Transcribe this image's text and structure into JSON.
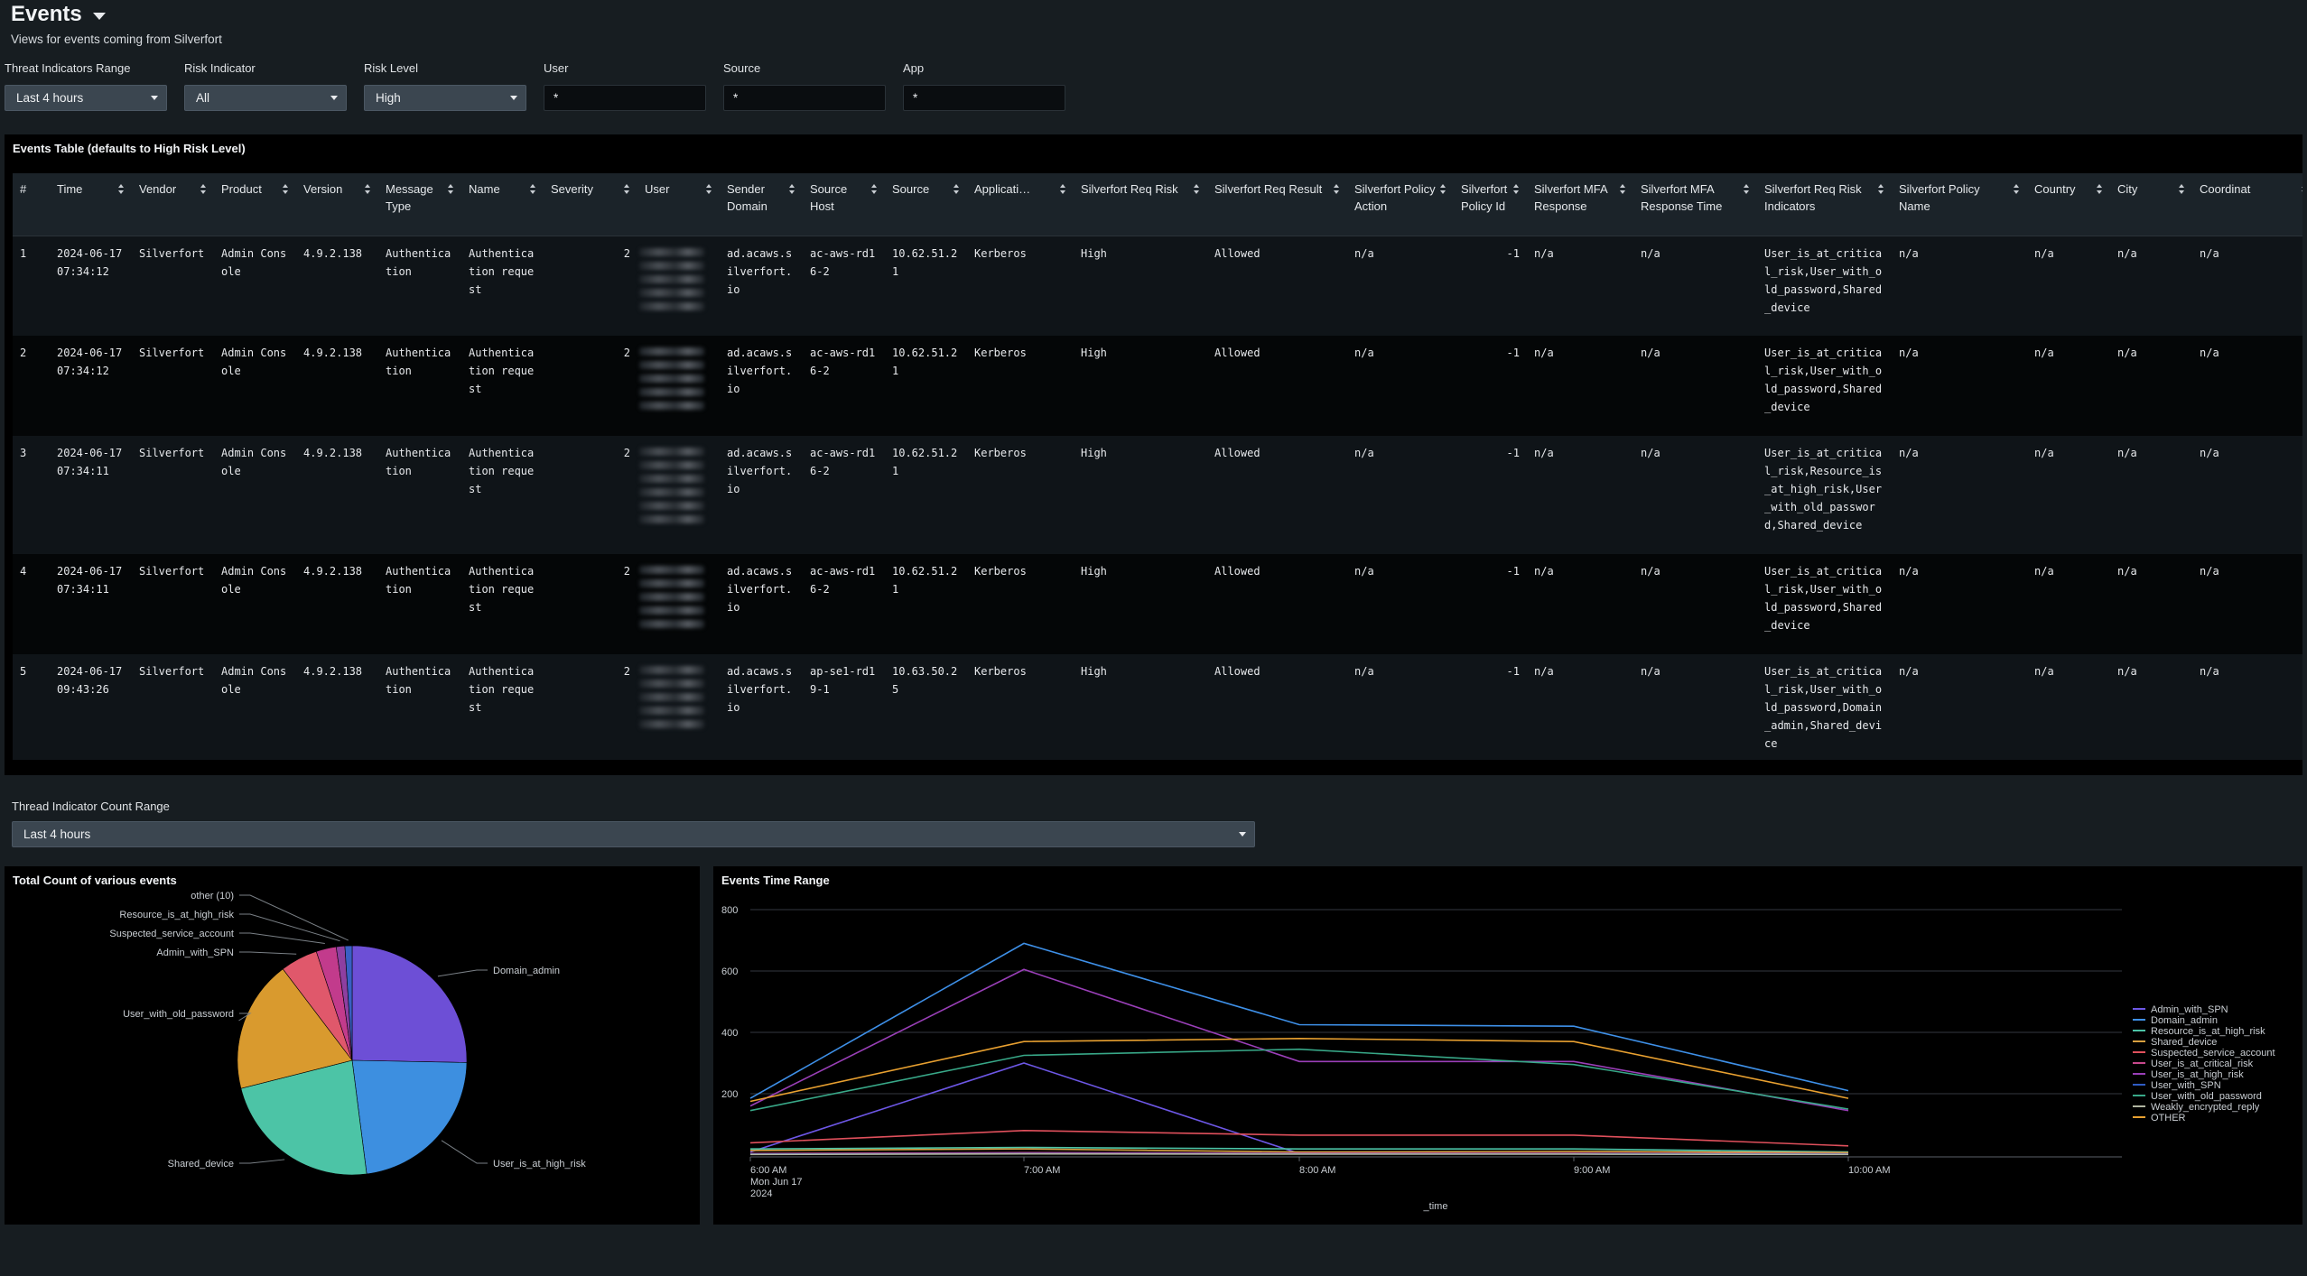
{
  "header": {
    "title": "Events",
    "subtitle": "Views for events coming from Silverfort"
  },
  "filters": [
    {
      "label": "Threat Indicators Range",
      "type": "dropdown",
      "value": "Last 4 hours"
    },
    {
      "label": "Risk Indicator",
      "type": "dropdown",
      "value": "All"
    },
    {
      "label": "Risk Level",
      "type": "dropdown",
      "value": "High"
    },
    {
      "label": "User",
      "type": "text",
      "value": "*"
    },
    {
      "label": "Source",
      "type": "text",
      "value": "*"
    },
    {
      "label": "App",
      "type": "text",
      "value": "*"
    }
  ],
  "events_table": {
    "title": "Events Table (defaults to High Risk Level)",
    "columns": [
      "#",
      "Time",
      "Vendor",
      "Product",
      "Version",
      "Message Type",
      "Name",
      "Severity",
      "User",
      "Sender Domain",
      "Source Host",
      "Source",
      "Applicati…",
      "Silverfort Req Risk",
      "Silverfort Req Result",
      "Silverfort Policy Action",
      "Silverfort Policy Id",
      "Silverfort MFA Response",
      "Silverfort MFA Response Time",
      "Silverfort Req Risk Indicators",
      "Silverfort Policy Name",
      "Country",
      "City",
      "Coordinat"
    ],
    "rows": [
      {
        "n": "1",
        "time": "2024-06-17 07:34:12",
        "vendor": "Silverfort",
        "product": "Admin Console",
        "version": "4.9.2.138",
        "msg_type": "Authentication",
        "name": "Authentication request",
        "severity": "2",
        "domain": "ad.acaws.silverfort.io",
        "host": "ac-aws-rd16-2",
        "source": "10.62.51.21",
        "app": "Kerberos",
        "risk": "High",
        "result": "Allowed",
        "action": "n/a",
        "policy_id": "-1",
        "mfa": "n/a",
        "mfa_time": "n/a",
        "indicators": "User_is_at_critical_risk,User_with_old_password,Shared_device",
        "policy_name": "n/a",
        "country": "n/a",
        "city": "n/a",
        "coord": "n/a"
      },
      {
        "n": "2",
        "time": "2024-06-17 07:34:12",
        "vendor": "Silverfort",
        "product": "Admin Console",
        "version": "4.9.2.138",
        "msg_type": "Authentication",
        "name": "Authentication request",
        "severity": "2",
        "domain": "ad.acaws.silverfort.io",
        "host": "ac-aws-rd16-2",
        "source": "10.62.51.21",
        "app": "Kerberos",
        "risk": "High",
        "result": "Allowed",
        "action": "n/a",
        "policy_id": "-1",
        "mfa": "n/a",
        "mfa_time": "n/a",
        "indicators": "User_is_at_critical_risk,User_with_old_password,Shared_device",
        "policy_name": "n/a",
        "country": "n/a",
        "city": "n/a",
        "coord": "n/a"
      },
      {
        "n": "3",
        "time": "2024-06-17 07:34:11",
        "vendor": "Silverfort",
        "product": "Admin Console",
        "version": "4.9.2.138",
        "msg_type": "Authentication",
        "name": "Authentication request",
        "severity": "2",
        "domain": "ad.acaws.silverfort.io",
        "host": "ac-aws-rd16-2",
        "source": "10.62.51.21",
        "app": "Kerberos",
        "risk": "High",
        "result": "Allowed",
        "action": "n/a",
        "policy_id": "-1",
        "mfa": "n/a",
        "mfa_time": "n/a",
        "indicators": "User_is_at_critical_risk,Resource_is_at_high_risk,User_with_old_password,Shared_device",
        "policy_name": "n/a",
        "country": "n/a",
        "city": "n/a",
        "coord": "n/a"
      },
      {
        "n": "4",
        "time": "2024-06-17 07:34:11",
        "vendor": "Silverfort",
        "product": "Admin Console",
        "version": "4.9.2.138",
        "msg_type": "Authentication",
        "name": "Authentication request",
        "severity": "2",
        "domain": "ad.acaws.silverfort.io",
        "host": "ac-aws-rd16-2",
        "source": "10.62.51.21",
        "app": "Kerberos",
        "risk": "High",
        "result": "Allowed",
        "action": "n/a",
        "policy_id": "-1",
        "mfa": "n/a",
        "mfa_time": "n/a",
        "indicators": "User_is_at_critical_risk,User_with_old_password,Shared_device",
        "policy_name": "n/a",
        "country": "n/a",
        "city": "n/a",
        "coord": "n/a"
      },
      {
        "n": "5",
        "time": "2024-06-17 09:43:26",
        "vendor": "Silverfort",
        "product": "Admin Console",
        "version": "4.9.2.138",
        "msg_type": "Authentication",
        "name": "Authentication request",
        "severity": "2",
        "domain": "ad.acaws.silverfort.io",
        "host": "ap-se1-rd19-1",
        "source": "10.63.50.25",
        "app": "Kerberos",
        "risk": "High",
        "result": "Allowed",
        "action": "n/a",
        "policy_id": "-1",
        "mfa": "n/a",
        "mfa_time": "n/a",
        "indicators": "User_is_at_critical_risk,User_with_old_password,Domain_admin,Shared_device",
        "policy_name": "n/a",
        "country": "n/a",
        "city": "n/a",
        "coord": "n/a"
      }
    ]
  },
  "count_range": {
    "label": "Thread Indicator Count Range",
    "value": "Last 4 hours"
  },
  "chart_data": [
    {
      "type": "pie",
      "title": "Total Count of various events",
      "slices": [
        {
          "label": "Domain_admin",
          "value": 1250,
          "color": "#6d4fd6"
        },
        {
          "label": "User_is_at_high_risk",
          "value": 1120,
          "color": "#3d8fe0"
        },
        {
          "label": "Shared_device",
          "value": 1140,
          "color": "#4cc4a6"
        },
        {
          "label": "User_with_old_password",
          "value": 920,
          "color": "#d99a2e"
        },
        {
          "label": "Admin_with_SPN",
          "value": 260,
          "color": "#e0586b"
        },
        {
          "label": "Suspected_service_account",
          "value": 140,
          "color": "#c23b8c"
        },
        {
          "label": "Resource_is_at_high_risk",
          "value": 60,
          "color": "#8e3fa0"
        },
        {
          "label": "other (10)",
          "value": 50,
          "color": "#3a5fc4"
        }
      ]
    },
    {
      "type": "line",
      "title": "Events Time Range",
      "xlabel": "_time",
      "x": [
        "6:00 AM",
        "7:00 AM",
        "8:00 AM",
        "9:00 AM",
        "10:00 AM"
      ],
      "x_sub": [
        "Mon Jun 17",
        "2024"
      ],
      "yticks": [
        200,
        400,
        600,
        800
      ],
      "ylim": [
        0,
        800
      ],
      "series": [
        {
          "name": "Admin_with_SPN",
          "color": "#6d57e6",
          "values": [
            10,
            300,
            5,
            5,
            5
          ]
        },
        {
          "name": "Domain_admin",
          "color": "#3e90e8",
          "values": [
            185,
            690,
            425,
            420,
            210
          ]
        },
        {
          "name": "Resource_is_at_high_risk",
          "color": "#4cc4a6",
          "values": [
            20,
            25,
            20,
            20,
            10
          ]
        },
        {
          "name": "Shared_device",
          "color": "#d8a040",
          "values": [
            15,
            20,
            10,
            12,
            8
          ]
        },
        {
          "name": "Suspected_service_account",
          "color": "#e0505c",
          "values": [
            40,
            80,
            65,
            65,
            30
          ]
        },
        {
          "name": "User_is_at_critical_risk",
          "color": "#c7488c",
          "values": [
            5,
            8,
            6,
            6,
            4
          ]
        },
        {
          "name": "User_is_at_high_risk",
          "color": "#9a3fb8",
          "values": [
            160,
            605,
            305,
            305,
            145
          ]
        },
        {
          "name": "User_with_SPN",
          "color": "#2f5cc4",
          "values": [
            3,
            5,
            4,
            4,
            3
          ]
        },
        {
          "name": "User_with_old_password",
          "color": "#38a888",
          "values": [
            145,
            325,
            345,
            295,
            150
          ]
        },
        {
          "name": "Weakly_encrypted_reply",
          "color": "#b0b4a0",
          "values": [
            2,
            4,
            3,
            3,
            2
          ]
        },
        {
          "name": "OTHER",
          "color": "#e8a030",
          "values": [
            175,
            370,
            380,
            370,
            185
          ]
        }
      ]
    }
  ]
}
